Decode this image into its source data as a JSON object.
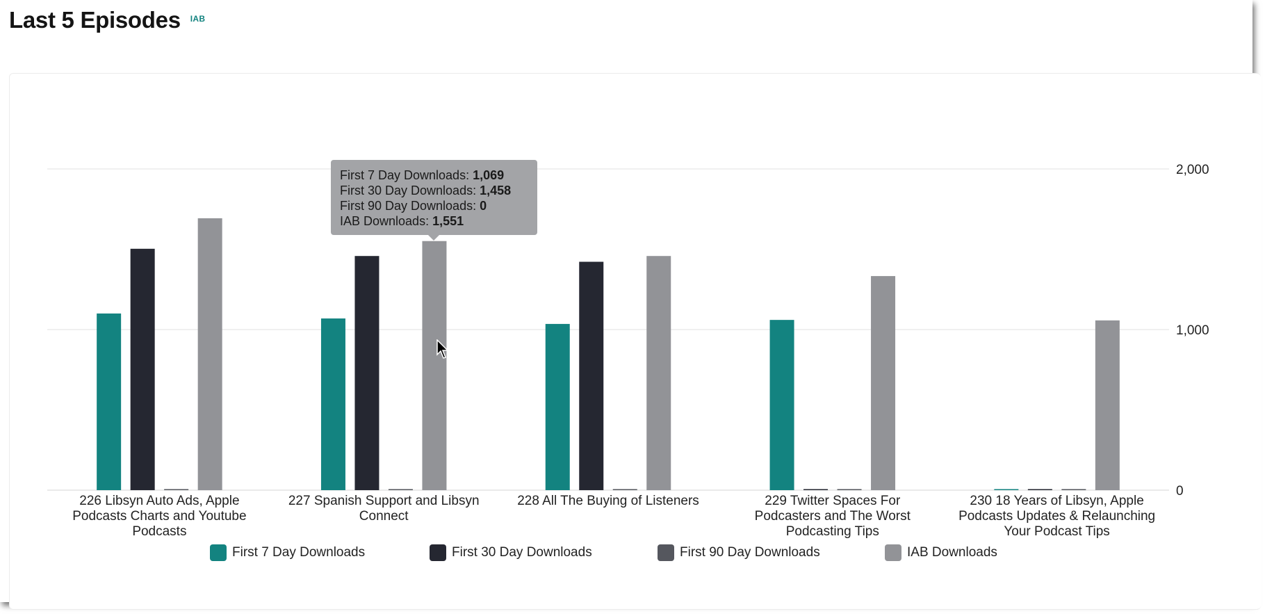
{
  "header": {
    "title": "Last 5 Episodes",
    "badge": "IAB"
  },
  "colors": {
    "first7": "#138380",
    "first30": "#252731",
    "first90": "#55575e",
    "iab": "#929397",
    "grid": "#e2e2e2"
  },
  "chart_data": {
    "type": "bar",
    "categories": [
      "226 Libsyn Auto Ads, Apple Podcasts Charts and Youtube Podcasts",
      "227 Spanish Support and Libsyn Connect",
      "228 All The Buying of Listeners",
      "229 Twitter Spaces For Podcasters and The Worst Podcasting Tips",
      "230 18 Years of Libsyn, Apple Podcasts Updates & Relaunching Your Podcast Tips"
    ],
    "category_lines": [
      [
        "226 Libsyn Auto Ads, Apple",
        "Podcasts Charts and Youtube",
        "Podcasts"
      ],
      [
        "227 Spanish Support and Libsyn",
        "Connect"
      ],
      [
        "228 All The Buying of Listeners"
      ],
      [
        "229 Twitter Spaces For",
        "Podcasters and The Worst",
        "Podcasting Tips"
      ],
      [
        "230 18 Years of Libsyn, Apple",
        "Podcasts Updates & Relaunching",
        "Your Podcast Tips"
      ]
    ],
    "series": [
      {
        "name": "First 7 Day Downloads",
        "color_key": "first7",
        "values": [
          1100,
          1069,
          1035,
          1060,
          0
        ]
      },
      {
        "name": "First 30 Day Downloads",
        "color_key": "first30",
        "values": [
          1503,
          1458,
          1422,
          0,
          0
        ]
      },
      {
        "name": "First 90 Day Downloads",
        "color_key": "first90",
        "values": [
          0,
          0,
          0,
          0,
          0
        ]
      },
      {
        "name": "IAB Downloads",
        "color_key": "iab",
        "values": [
          1693,
          1551,
          1458,
          1333,
          1057
        ]
      }
    ],
    "ylim": [
      0,
      2000
    ],
    "yticks": [
      {
        "value": 0,
        "label": "0"
      },
      {
        "value": 1000,
        "label": "1,000"
      },
      {
        "value": 2000,
        "label": "2,000"
      }
    ],
    "y_axis_position": "right",
    "grid": true,
    "legend": "bottom"
  },
  "tooltip": {
    "rows": [
      {
        "label": "First 7 Day Downloads: ",
        "value": "1,069"
      },
      {
        "label": "First 30 Day Downloads: ",
        "value": "1,458"
      },
      {
        "label": "First 90 Day Downloads: ",
        "value": "0"
      },
      {
        "label": "IAB Downloads: ",
        "value": "1,551"
      }
    ]
  }
}
